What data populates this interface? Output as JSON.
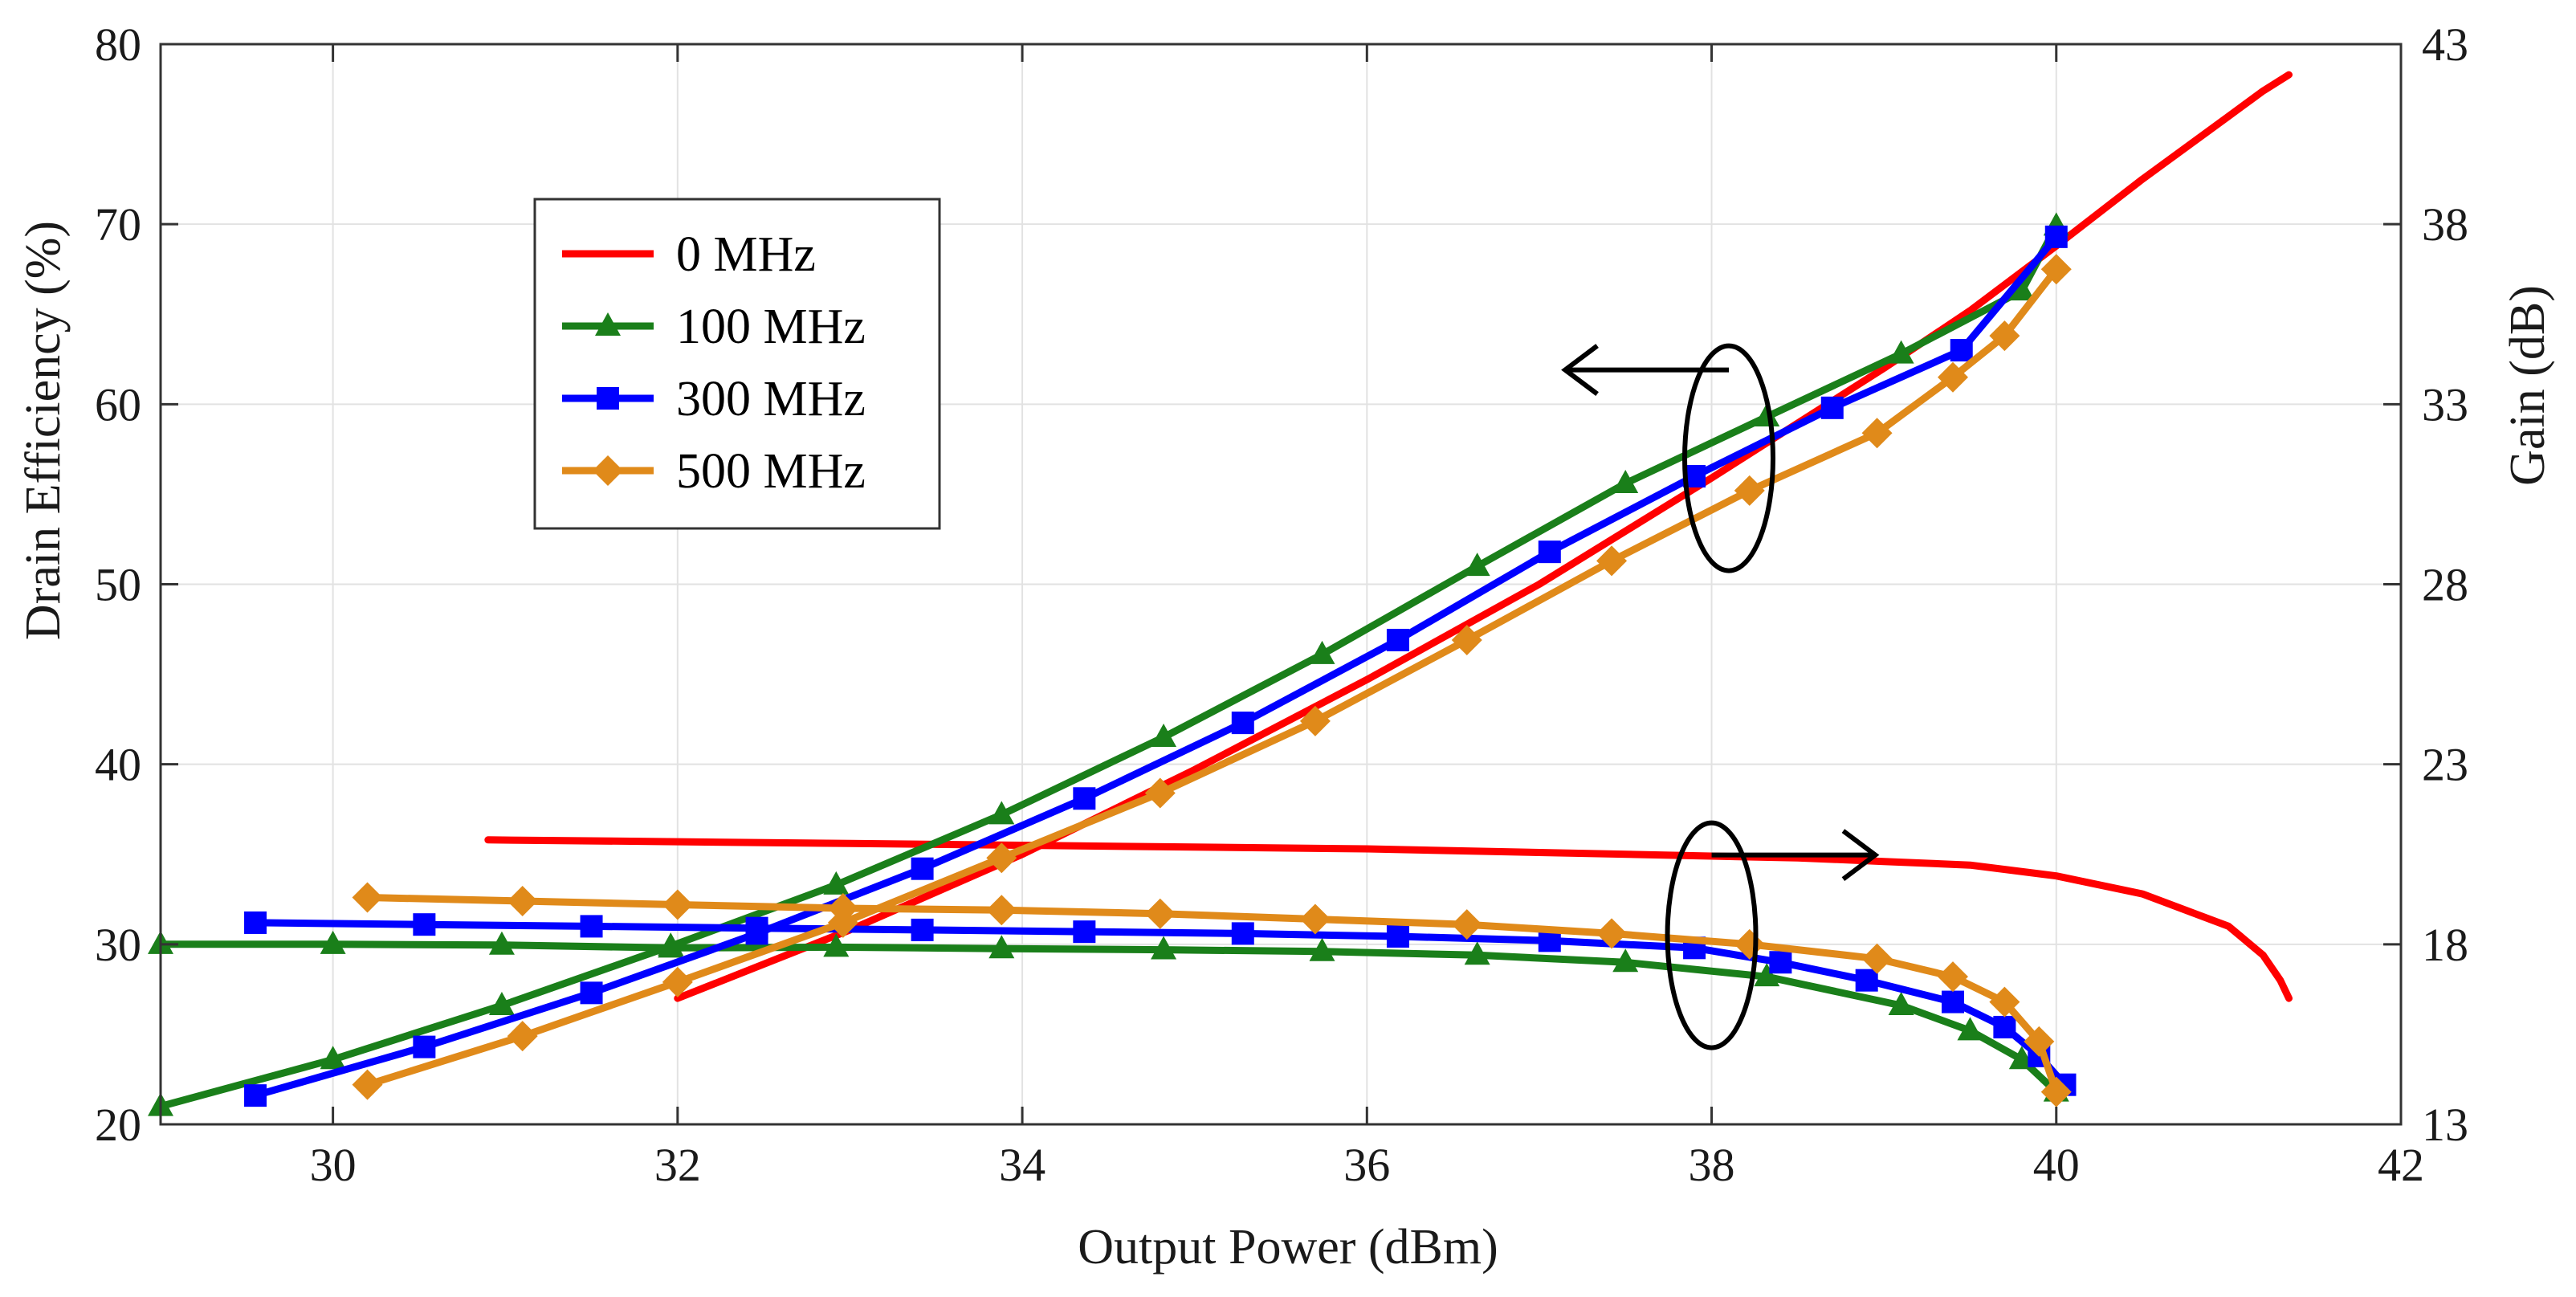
{
  "chart_data": {
    "type": "line",
    "title": "",
    "xlabel": "Output Power (dBm)",
    "ylabel_left": "Drain Efficiency (%)",
    "ylabel_right": "Gain (dB)",
    "xlim": [
      29,
      42
    ],
    "ylim_left": [
      20,
      80
    ],
    "ylim_right": [
      13,
      43
    ],
    "x_ticks": [
      30,
      32,
      34,
      36,
      38,
      40,
      42
    ],
    "y_left_ticks": [
      20,
      30,
      40,
      50,
      60,
      70,
      80
    ],
    "y_right_ticks": [
      13,
      18,
      23,
      28,
      33,
      38,
      43
    ],
    "y_right_tick_labels": [
      "13",
      "18",
      "23",
      "28",
      "33",
      "38",
      "43"
    ],
    "grid": true,
    "legend_location": "upper-left",
    "legend": [
      {
        "label": "0 MHz",
        "color": "#ff0000",
        "marker": "none"
      },
      {
        "label": "100 MHz",
        "color": "#1a7f1a",
        "marker": "triangle"
      },
      {
        "label": "300 MHz",
        "color": "#0000ff",
        "marker": "square"
      },
      {
        "label": "500 MHz",
        "color": "#e08a1a",
        "marker": "diamond"
      }
    ],
    "series": [
      {
        "name": "0 MHz",
        "axis": "left",
        "metric": "Drain Efficiency",
        "color": "#ff0000",
        "marker": "none",
        "x": [
          32.0,
          33.0,
          34.0,
          35.0,
          36.0,
          37.0,
          38.0,
          39.0,
          39.5,
          40.0,
          40.5,
          41.0,
          41.2,
          41.35
        ],
        "y": [
          27.0,
          30.8,
          35.0,
          39.7,
          44.7,
          50.0,
          55.9,
          62.0,
          65.2,
          68.8,
          72.5,
          76.0,
          77.4,
          78.3
        ]
      },
      {
        "name": "0 MHz",
        "axis": "right",
        "metric": "Gain",
        "color": "#ff0000",
        "marker": "none",
        "x": [
          30.9,
          32.0,
          33.0,
          34.0,
          35.0,
          36.0,
          37.0,
          38.0,
          38.5,
          39.0,
          39.5,
          40.0,
          40.5,
          41.0,
          41.2,
          41.3,
          41.35
        ],
        "y": [
          20.9,
          20.85,
          20.8,
          20.75,
          20.7,
          20.65,
          20.55,
          20.45,
          20.4,
          20.3,
          20.2,
          19.9,
          19.4,
          18.5,
          17.7,
          17.0,
          16.5
        ]
      },
      {
        "name": "100 MHz",
        "axis": "left",
        "metric": "Drain Efficiency",
        "color": "#1a7f1a",
        "marker": "triangle",
        "x": [
          29.0,
          30.0,
          30.98,
          31.96,
          32.92,
          33.88,
          34.82,
          35.74,
          36.64,
          37.5,
          38.32,
          39.1,
          39.8,
          40.0
        ],
        "y": [
          21.0,
          23.6,
          26.6,
          29.9,
          33.3,
          37.2,
          41.5,
          46.1,
          51.0,
          55.6,
          59.3,
          62.8,
          66.3,
          69.9
        ]
      },
      {
        "name": "100 MHz",
        "axis": "right",
        "metric": "Gain",
        "color": "#1a7f1a",
        "marker": "triangle",
        "x": [
          29.0,
          30.0,
          30.98,
          31.96,
          32.92,
          33.88,
          34.82,
          35.74,
          36.64,
          37.5,
          38.32,
          39.1,
          39.5,
          39.8,
          40.0
        ],
        "y": [
          18.0,
          18.0,
          17.98,
          17.9,
          17.92,
          17.88,
          17.85,
          17.8,
          17.7,
          17.5,
          17.1,
          16.3,
          15.6,
          14.8,
          13.9
        ]
      },
      {
        "name": "300 MHz",
        "axis": "left",
        "metric": "Drain Efficiency",
        "color": "#0000ff",
        "marker": "square",
        "x": [
          29.55,
          30.53,
          31.5,
          32.46,
          33.42,
          34.36,
          35.28,
          36.18,
          37.06,
          37.9,
          38.7,
          39.45,
          40.0
        ],
        "y": [
          21.6,
          24.3,
          27.3,
          30.6,
          34.2,
          38.1,
          42.3,
          46.9,
          51.8,
          56.0,
          59.8,
          63.0,
          69.3
        ]
      },
      {
        "name": "300 MHz",
        "axis": "right",
        "metric": "Gain",
        "color": "#0000ff",
        "marker": "square",
        "x": [
          29.55,
          30.53,
          31.5,
          32.46,
          33.42,
          34.36,
          35.28,
          36.18,
          37.06,
          37.9,
          38.4,
          38.9,
          39.4,
          39.7,
          39.9,
          40.05
        ],
        "y": [
          18.6,
          18.55,
          18.5,
          18.45,
          18.4,
          18.35,
          18.3,
          18.22,
          18.1,
          17.9,
          17.5,
          17.0,
          16.4,
          15.7,
          14.9,
          14.1
        ]
      },
      {
        "name": "500 MHz",
        "axis": "left",
        "metric": "Drain Efficiency",
        "color": "#e08a1a",
        "marker": "diamond",
        "x": [
          30.2,
          31.1,
          32.0,
          32.96,
          33.88,
          34.8,
          35.7,
          36.58,
          37.42,
          38.22,
          38.96,
          39.4,
          39.7,
          40.0
        ],
        "y": [
          22.2,
          24.9,
          27.9,
          31.2,
          34.8,
          38.4,
          42.4,
          46.9,
          51.3,
          55.2,
          58.4,
          61.5,
          63.8,
          67.5
        ]
      },
      {
        "name": "500 MHz",
        "axis": "right",
        "metric": "Gain",
        "color": "#e08a1a",
        "marker": "diamond",
        "x": [
          30.2,
          31.1,
          32.0,
          32.96,
          33.88,
          34.8,
          35.7,
          36.58,
          37.42,
          38.22,
          38.96,
          39.4,
          39.7,
          39.9,
          40.0
        ],
        "y": [
          19.3,
          19.2,
          19.1,
          19.0,
          18.95,
          18.85,
          18.7,
          18.55,
          18.3,
          18.0,
          17.6,
          17.1,
          16.4,
          15.3,
          13.9
        ]
      }
    ],
    "annotations": [
      {
        "type": "ellipse-arrow",
        "target_axis": "left",
        "direction": "left",
        "around": "efficiency curves near 38 dBm"
      },
      {
        "type": "ellipse-arrow",
        "target_axis": "right",
        "direction": "right",
        "around": "gain curves near 38 dBm"
      }
    ]
  }
}
